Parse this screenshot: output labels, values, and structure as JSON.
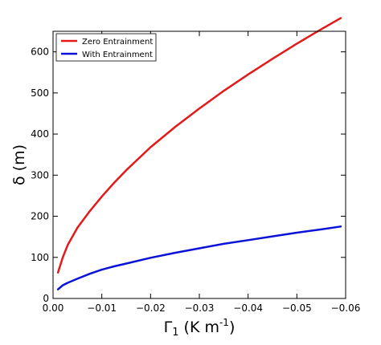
{
  "chart_data": {
    "type": "line",
    "title": "",
    "xlabel_symbol": "Γ",
    "xlabel_subscript": "1",
    "xlabel_unit_open": " (K m",
    "xlabel_unit_sup": "-1",
    "xlabel_unit_close": ")",
    "ylabel": "δ (m)",
    "xlim": [
      0.0,
      -0.06
    ],
    "ylim": [
      0,
      650
    ],
    "xticks": [
      0.0,
      -0.01,
      -0.02,
      -0.03,
      -0.04,
      -0.05,
      -0.06
    ],
    "xtick_labels": [
      "0.00",
      "−0.01",
      "−0.02",
      "−0.03",
      "−0.04",
      "−0.05",
      "−0.06"
    ],
    "yticks": [
      0,
      100,
      200,
      300,
      400,
      500,
      600
    ],
    "ytick_labels": [
      "0",
      "100",
      "200",
      "300",
      "400",
      "500",
      "600"
    ],
    "grid": false,
    "legend_position": "top-left",
    "series": [
      {
        "name": "Zero Entrainment",
        "color": "#e31a1c",
        "x": [
          -0.001,
          -0.002,
          -0.003,
          -0.005,
          -0.0075,
          -0.01,
          -0.0125,
          -0.015,
          -0.02,
          -0.025,
          -0.03,
          -0.035,
          -0.04,
          -0.045,
          -0.05,
          -0.055,
          -0.059
        ],
        "y": [
          63,
          100,
          130,
          172,
          212,
          248,
          281,
          312,
          368,
          417,
          462,
          505,
          545,
          583,
          620,
          655,
          682
        ]
      },
      {
        "name": "With Entrainment",
        "color": "#0a12d6",
        "x": [
          -0.001,
          -0.002,
          -0.003,
          -0.005,
          -0.0075,
          -0.01,
          -0.0125,
          -0.015,
          -0.02,
          -0.025,
          -0.03,
          -0.035,
          -0.04,
          -0.045,
          -0.05,
          -0.055,
          -0.059
        ],
        "y": [
          22,
          32,
          38,
          48,
          60,
          70,
          78,
          85,
          99,
          111,
          122,
          133,
          142,
          151,
          160,
          168,
          175
        ]
      }
    ]
  }
}
